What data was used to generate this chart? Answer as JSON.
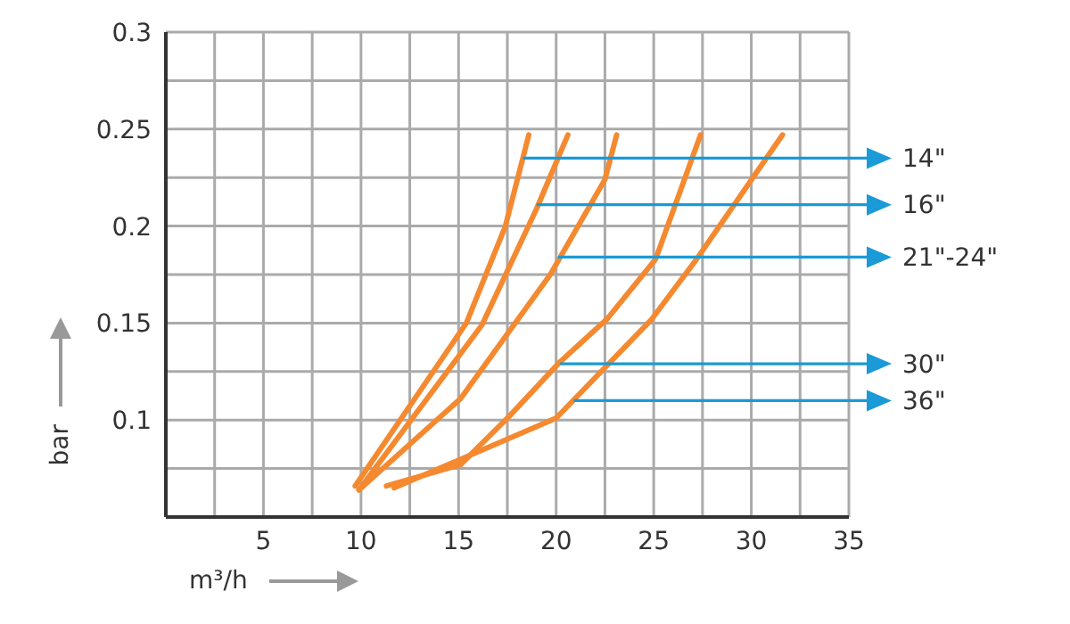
{
  "chart_data": {
    "type": "line",
    "xlabel": "m³/h",
    "ylabel": "bar",
    "xlim": [
      0,
      35
    ],
    "xticks": [
      {
        "value": 0,
        "label": null
      },
      {
        "value": 2.5,
        "label": null
      },
      5,
      {
        "value": 7.5,
        "label": null
      },
      10,
      {
        "value": 12.5,
        "label": null
      },
      15,
      {
        "value": 17.5,
        "label": null
      },
      20,
      {
        "value": 22.5,
        "label": null
      },
      25,
      {
        "value": 27.5,
        "label": null
      },
      30,
      {
        "value": 32.5,
        "label": null
      },
      35
    ],
    "ylim": [
      0.05,
      0.3
    ],
    "yticks": [
      {
        "value": 0.05,
        "label": null
      },
      {
        "value": 0.075,
        "label": null
      },
      0.1,
      {
        "value": 0.125,
        "label": null
      },
      0.15,
      {
        "value": 0.175,
        "label": null
      },
      0.2,
      {
        "value": 0.225,
        "label": null
      },
      0.25,
      {
        "value": 0.275,
        "label": null
      },
      0.3
    ],
    "grid": true,
    "marker": "none",
    "line_style": "solid",
    "series": [
      {
        "color": "#f5892f",
        "x": [
          9.7,
          15.4,
          17.4,
          18.6
        ],
        "values": [
          0.066,
          0.15,
          0.2,
          0.247
        ]
      },
      {
        "color": "#f5892f",
        "x": [
          9.9,
          16.2,
          19,
          20.6
        ],
        "values": [
          0.064,
          0.149,
          0.209,
          0.247
        ]
      },
      {
        "color": "#f5892f",
        "x": [
          9.9,
          15.1,
          19.7,
          22.5,
          23.1
        ],
        "values": [
          0.064,
          0.111,
          0.175,
          0.224,
          0.247
        ]
      },
      {
        "color": "#f5892f",
        "x": [
          11.3,
          15.1,
          17.6,
          20.2,
          22.6,
          25.1,
          27.4
        ],
        "values": [
          0.066,
          0.077,
          0.102,
          0.13,
          0.152,
          0.183,
          0.247
        ]
      },
      {
        "color": "#f5892f",
        "x": [
          11.7,
          14.7,
          20,
          24.9,
          27.2,
          31.6
        ],
        "values": [
          0.065,
          0.078,
          0.101,
          0.152,
          0.183,
          0.247
        ]
      }
    ],
    "annotations": [
      {
        "text": "14\"",
        "x": 18.3,
        "y": 0.235
      },
      {
        "text": "16\"",
        "x": 19,
        "y": 0.211
      },
      {
        "text": "21\"-24\"",
        "x": 20.1,
        "y": 0.184
      },
      {
        "text": "30\"",
        "x": 20.2,
        "y": 0.129
      },
      {
        "text": "36\"",
        "x": 20.9,
        "y": 0.11
      }
    ]
  }
}
